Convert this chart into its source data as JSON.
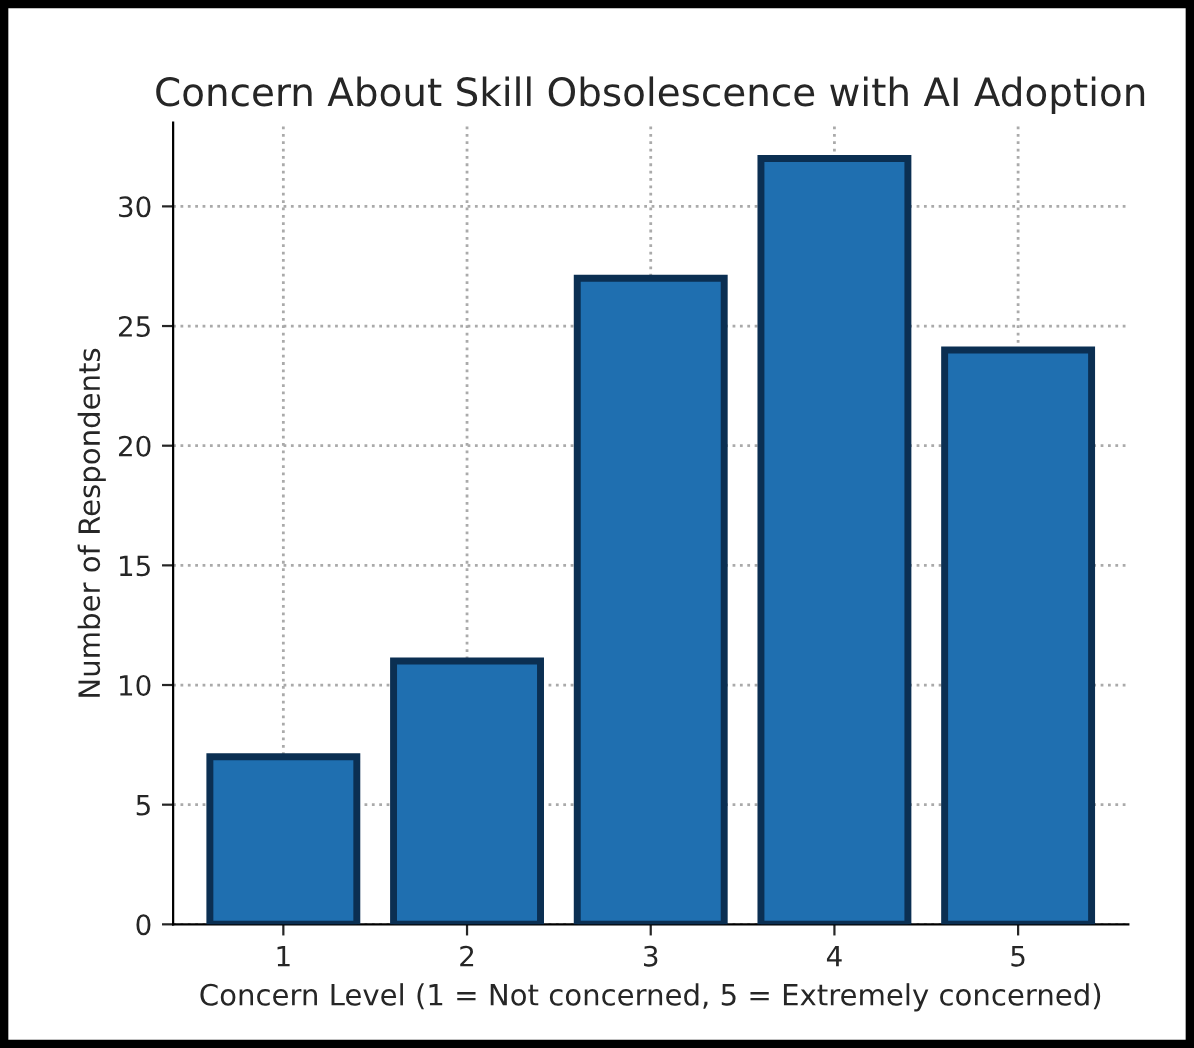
{
  "chart_data": {
    "type": "bar",
    "title": "Concern About Skill Obsolescence with AI Adoption",
    "xlabel": "Concern Level (1 = Not concerned, 5 = Extremely concerned)",
    "ylabel": "Number of Respondents",
    "categories": [
      "1",
      "2",
      "3",
      "4",
      "5"
    ],
    "values": [
      7,
      11,
      27,
      32,
      24
    ],
    "color": "#1f6fb0",
    "ylim": [
      0,
      33.5
    ],
    "yticks": [
      0,
      5,
      10,
      15,
      20,
      25,
      30
    ],
    "grid": true
  }
}
